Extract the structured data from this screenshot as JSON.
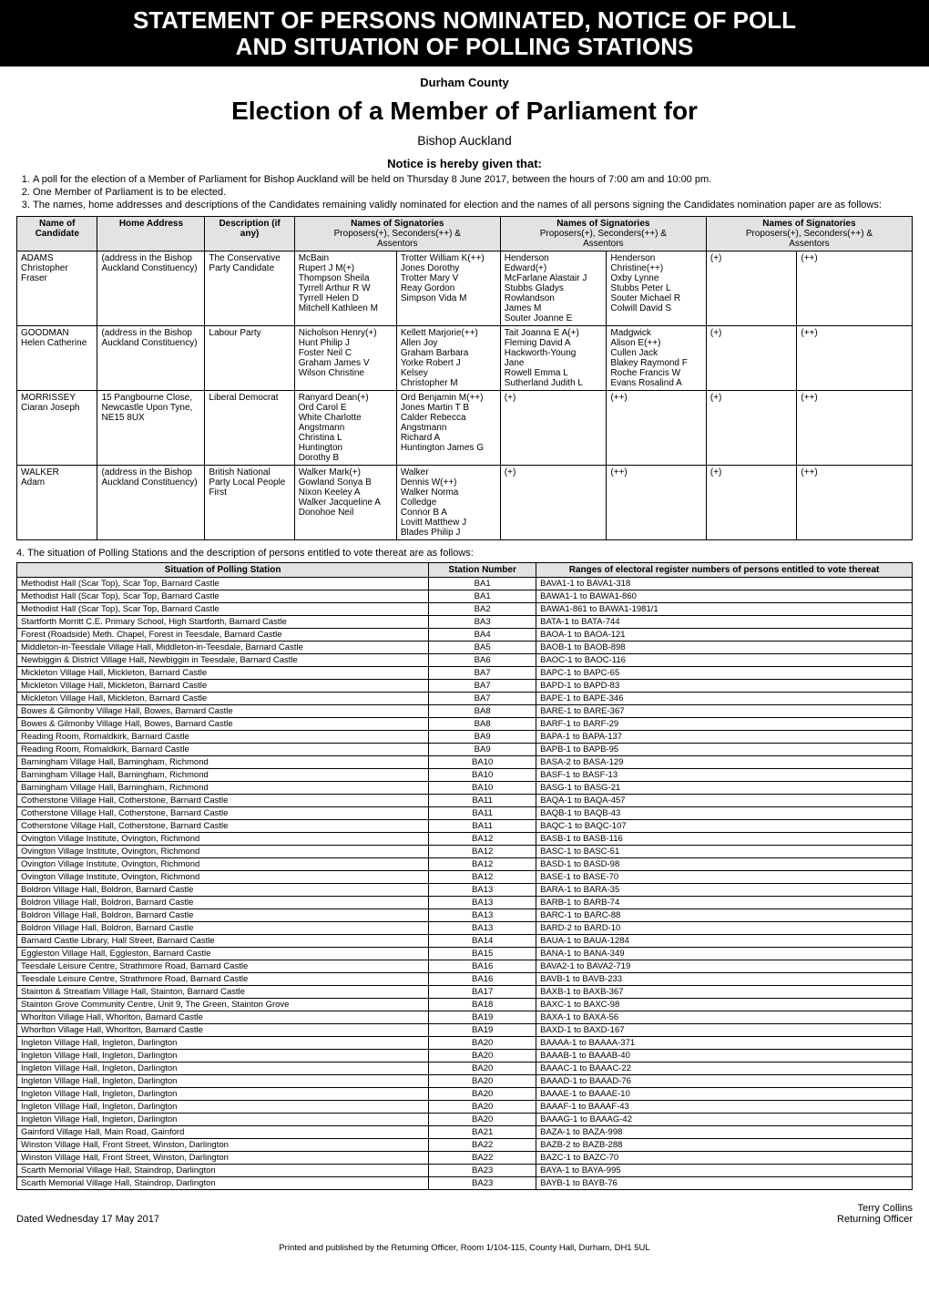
{
  "banner": {
    "line1": "STATEMENT OF PERSONS NOMINATED, NOTICE OF POLL",
    "line2": "AND SITUATION OF POLLING STATIONS"
  },
  "county": "Durham County",
  "election_title": "Election of a Member of Parliament for",
  "constituency": "Bishop Auckland",
  "notice_heading": "Notice is hereby given that:",
  "notices": [
    "A poll for the election of a Member of Parliament for Bishop Auckland will be held on Thursday 8 June 2017, between the hours of 7:00 am and 10:00 pm.",
    "One Member of Parliament is to be elected.",
    "The names, home addresses and descriptions of the Candidates remaining validly nominated for election and the names of all persons signing the Candidates nomination paper are as follows:"
  ],
  "cand_headers": {
    "name": "Name of\nCandidate",
    "home": "Home Address",
    "desc": "Description (if\nany)",
    "sig_title": "Names of Signatories",
    "sig_sub": "Proposers(+), Seconders(++) &\nAssentors"
  },
  "candidates": [
    {
      "surname": "ADAMS",
      "forenames": "Christopher Fraser",
      "address": "(address in the Bishop Auckland Constituency)",
      "description": "The Conservative Party Candidate",
      "sig1a": "McBain\nRupert J M(+)\nThompson Sheila\nTyrrell Arthur R W\nTyrrell Helen D\nMitchell Kathleen M",
      "sig1b": "Trotter William K(++)\nJones Dorothy\nTrotter Mary V\nReay Gordon\nSimpson Vida M",
      "sig2a": "Henderson\nEdward(+)\nMcFarlane Alastair J\nStubbs Gladys\nRowlandson\nJames M\nSouter Joanne E",
      "sig2b": "Henderson\nChristine(++)\nOxby Lynne\nStubbs Peter L\nSouter Michael R\nColwill David S",
      "sig3a": "(+)",
      "sig3b": "(++)"
    },
    {
      "surname": "GOODMAN",
      "forenames": "Helen Catherine",
      "address": "(address in the Bishop Auckland Constituency)",
      "description": "Labour Party",
      "sig1a": "Nicholson Henry(+)\nHunt Philip J\nFoster Neil C\nGraham James V\nWilson Christine",
      "sig1b": "Kellett Marjorie(++)\nAllen Joy\nGraham Barbara\nYorke Robert J\nKelsey\nChristopher M",
      "sig2a": "Tait Joanna E A(+)\nFleming David A\nHackworth-Young\nJane\nRowell Emma L\nSutherland Judith L",
      "sig2b": "Madgwick\nAlison E(++)\nCullen Jack\nBlakey Raymond F\nRoche Francis W\nEvans Rosalind A",
      "sig3a": "(+)",
      "sig3b": "(++)"
    },
    {
      "surname": "MORRISSEY",
      "forenames": "Ciaran Joseph",
      "address": "15 Pangbourne Close, Newcastle Upon Tyne, NE15 8UX",
      "description": "Liberal Democrat",
      "sig1a": "Ranyard Dean(+)\nOrd Carol E\nWhite Charlotte\nAngstmann\nChristina L\nHuntington\nDorothy B",
      "sig1b": "Ord Benjamin M(++)\nJones Martin T B\nCalder Rebecca\nAngstmann\nRichard A\nHuntington James G",
      "sig2a": "(+)",
      "sig2b": "(++)",
      "sig3a": "(+)",
      "sig3b": "(++)"
    },
    {
      "surname": "WALKER",
      "forenames": "Adam",
      "address": "(address in the Bishop Auckland Constituency)",
      "description": "British National Party Local People First",
      "sig1a": "Walker Mark(+)\nGowland Sonya B\nNixon Keeley A\nWalker Jacqueline A\nDonohoe Neil",
      "sig1b": "Walker\nDennis W(++)\nWalker Norma\nColledge\nConnor B A\nLovitt Matthew J\nBlades Philip J",
      "sig2a": "(+)",
      "sig2b": "(++)",
      "sig3a": "(+)",
      "sig3b": "(++)"
    }
  ],
  "intro4": "4.  The situation of Polling Stations and the description of persons entitled to vote thereat are as follows:",
  "station_headers": {
    "situation": "Situation of Polling Station",
    "number": "Station Number",
    "ranges": "Ranges of electoral register numbers of persons entitled to vote thereat"
  },
  "stations": [
    {
      "s": "Methodist Hall (Scar Top), Scar Top, Barnard Castle",
      "n": "BA1",
      "r": "BAVA1-1 to BAVA1-318"
    },
    {
      "s": "Methodist Hall (Scar Top), Scar Top, Barnard Castle",
      "n": "BA1",
      "r": "BAWA1-1 to BAWA1-860"
    },
    {
      "s": "Methodist Hall (Scar Top), Scar Top, Barnard Castle",
      "n": "BA2",
      "r": "BAWA1-861 to BAWA1-1981/1"
    },
    {
      "s": "Startforth Morritt C.E. Primary School, High Startforth, Barnard Castle",
      "n": "BA3",
      "r": "BATA-1 to BATA-744"
    },
    {
      "s": "Forest (Roadside) Meth. Chapel, Forest in Teesdale, Barnard Castle",
      "n": "BA4",
      "r": "BAOA-1 to BAOA-121"
    },
    {
      "s": "Middleton-in-Teesdale Village Hall, Middleton-in-Teesdale, Barnard Castle",
      "n": "BA5",
      "r": "BAOB-1 to BAOB-898"
    },
    {
      "s": "Newbiggin & District Village Hall, Newbiggin in Teesdale, Barnard Castle",
      "n": "BA6",
      "r": "BAOC-1 to BAOC-116"
    },
    {
      "s": "Mickleton Village Hall, Mickleton, Barnard Castle",
      "n": "BA7",
      "r": "BAPC-1 to BAPC-65"
    },
    {
      "s": "Mickleton Village Hall, Mickleton, Barnard Castle",
      "n": "BA7",
      "r": "BAPD-1 to BAPD-83"
    },
    {
      "s": "Mickleton Village Hall, Mickleton, Barnard Castle",
      "n": "BA7",
      "r": "BAPE-1 to BAPE-346"
    },
    {
      "s": "Bowes & Gilmonby Village Hall, Bowes, Barnard Castle",
      "n": "BA8",
      "r": "BARE-1 to BARE-367"
    },
    {
      "s": "Bowes & Gilmonby Village Hall, Bowes, Barnard Castle",
      "n": "BA8",
      "r": "BARF-1 to BARF-29"
    },
    {
      "s": "Reading Room, Romaldkirk, Barnard Castle",
      "n": "BA9",
      "r": "BAPA-1 to BAPA-137"
    },
    {
      "s": "Reading Room, Romaldkirk, Barnard Castle",
      "n": "BA9",
      "r": "BAPB-1 to BAPB-95"
    },
    {
      "s": "Barningham Village Hall, Barningham, Richmond",
      "n": "BA10",
      "r": "BASA-2 to BASA-129"
    },
    {
      "s": "Barningham Village Hall, Barningham, Richmond",
      "n": "BA10",
      "r": "BASF-1 to BASF-13"
    },
    {
      "s": "Barningham Village Hall, Barningham, Richmond",
      "n": "BA10",
      "r": "BASG-1 to BASG-21"
    },
    {
      "s": "Cotherstone Village Hall, Cotherstone, Barnard Castle",
      "n": "BA11",
      "r": "BAQA-1 to BAQA-457"
    },
    {
      "s": "Cotherstone Village Hall, Cotherstone, Barnard Castle",
      "n": "BA11",
      "r": "BAQB-1 to BAQB-43"
    },
    {
      "s": "Cotherstone Village Hall, Cotherstone, Barnard Castle",
      "n": "BA11",
      "r": "BAQC-1 to BAQC-107"
    },
    {
      "s": "Ovington Village Institute, Ovington, Richmond",
      "n": "BA12",
      "r": "BASB-1 to BASB-116"
    },
    {
      "s": "Ovington Village Institute, Ovington, Richmond",
      "n": "BA12",
      "r": "BASC-1 to BASC-51"
    },
    {
      "s": "Ovington Village Institute, Ovington, Richmond",
      "n": "BA12",
      "r": "BASD-1 to BASD-98"
    },
    {
      "s": "Ovington Village Institute, Ovington, Richmond",
      "n": "BA12",
      "r": "BASE-1 to BASE-70"
    },
    {
      "s": "Boldron Village Hall, Boldron, Barnard Castle",
      "n": "BA13",
      "r": "BARA-1 to BARA-35"
    },
    {
      "s": "Boldron Village Hall, Boldron, Barnard Castle",
      "n": "BA13",
      "r": "BARB-1 to BARB-74"
    },
    {
      "s": "Boldron Village Hall, Boldron, Barnard Castle",
      "n": "BA13",
      "r": "BARC-1 to BARC-88"
    },
    {
      "s": "Boldron Village Hall, Boldron, Barnard Castle",
      "n": "BA13",
      "r": "BARD-2 to BARD-10"
    },
    {
      "s": "Barnard Castle Library, Hall Street, Barnard Castle",
      "n": "BA14",
      "r": "BAUA-1 to BAUA-1284"
    },
    {
      "s": "Eggleston Village Hall, Eggleston, Barnard Castle",
      "n": "BA15",
      "r": "BANA-1 to BANA-349"
    },
    {
      "s": "Teesdale Leisure Centre, Strathmore Road, Barnard Castle",
      "n": "BA16",
      "r": "BAVA2-1 to BAVA2-719"
    },
    {
      "s": "Teesdale Leisure Centre, Strathmore Road, Barnard Castle",
      "n": "BA16",
      "r": "BAVB-1 to BAVB-233"
    },
    {
      "s": "Stainton & Streatlam Village Hall, Stainton, Barnard Castle",
      "n": "BA17",
      "r": "BAXB-1 to BAXB-367"
    },
    {
      "s": "Stainton Grove Community Centre, Unit 9, The Green, Stainton Grove",
      "n": "BA18",
      "r": "BAXC-1 to BAXC-98"
    },
    {
      "s": "Whorlton Village Hall, Whorlton, Barnard Castle",
      "n": "BA19",
      "r": "BAXA-1 to BAXA-56"
    },
    {
      "s": "Whorlton Village Hall, Whorlton, Barnard Castle",
      "n": "BA19",
      "r": "BAXD-1 to BAXD-167"
    },
    {
      "s": "Ingleton Village Hall, Ingleton, Darlington",
      "n": "BA20",
      "r": "BAAAA-1 to BAAAA-371"
    },
    {
      "s": "Ingleton Village Hall, Ingleton, Darlington",
      "n": "BA20",
      "r": "BAAAB-1 to BAAAB-40"
    },
    {
      "s": "Ingleton Village Hall, Ingleton, Darlington",
      "n": "BA20",
      "r": "BAAAC-1 to BAAAC-22"
    },
    {
      "s": "Ingleton Village Hall, Ingleton, Darlington",
      "n": "BA20",
      "r": "BAAAD-1 to BAAAD-76"
    },
    {
      "s": "Ingleton Village Hall, Ingleton, Darlington",
      "n": "BA20",
      "r": "BAAAE-1 to BAAAE-10"
    },
    {
      "s": "Ingleton Village Hall, Ingleton, Darlington",
      "n": "BA20",
      "r": "BAAAF-1 to BAAAF-43"
    },
    {
      "s": "Ingleton Village Hall, Ingleton, Darlington",
      "n": "BA20",
      "r": "BAAAG-1 to BAAAG-42"
    },
    {
      "s": "Gainford Village Hall, Main Road, Gainford",
      "n": "BA21",
      "r": "BAZA-1 to BAZA-998"
    },
    {
      "s": "Winston Village Hall, Front Street, Winston, Darlington",
      "n": "BA22",
      "r": "BAZB-2 to BAZB-288"
    },
    {
      "s": "Winston Village Hall, Front Street, Winston, Darlington",
      "n": "BA22",
      "r": "BAZC-1 to BAZC-70"
    },
    {
      "s": "Scarth Memorial Village Hall, Staindrop, Darlington",
      "n": "BA23",
      "r": "BAYA-1 to BAYA-995"
    },
    {
      "s": "Scarth Memorial Village Hall, Staindrop, Darlington",
      "n": "BA23",
      "r": "BAYB-1 to BAYB-76"
    }
  ],
  "footer": {
    "dated": "Dated Wednesday 17 May 2017",
    "ro_name": "Terry Collins",
    "ro_title": "Returning Officer"
  },
  "printed": "Printed and published by the Returning Officer, Room 1/104-115, County Hall, Durham, DH1 5UL"
}
